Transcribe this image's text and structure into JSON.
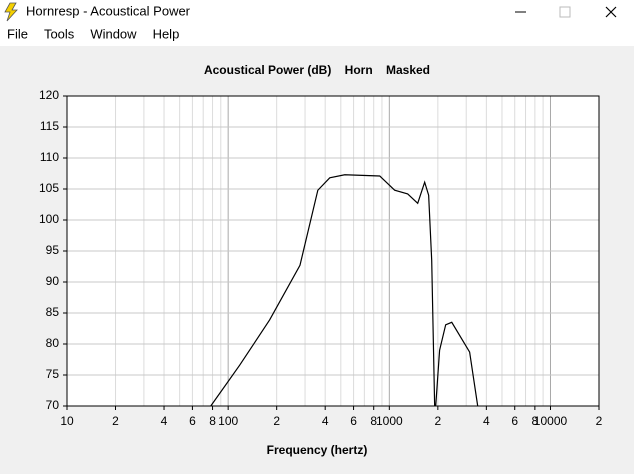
{
  "window": {
    "title": "Hornresp - Acoustical Power",
    "menu": [
      "File",
      "Tools",
      "Window",
      "Help"
    ]
  },
  "chart_data": {
    "type": "line",
    "title": "Acoustical Power (dB)    Horn    Masked",
    "x_label": "Frequency (hertz)",
    "log_x": true,
    "grid": true,
    "xlim": [
      10,
      20000
    ],
    "ylim": [
      70,
      120
    ],
    "xticks": [
      10,
      {
        "value": 20,
        "label": "2"
      },
      {
        "value": 40,
        "label": "4"
      },
      {
        "value": 60,
        "label": "6"
      },
      {
        "value": 80,
        "label": "8"
      },
      100,
      {
        "value": 200,
        "label": "2"
      },
      {
        "value": 400,
        "label": "4"
      },
      {
        "value": 600,
        "label": "6"
      },
      {
        "value": 800,
        "label": "8"
      },
      1000,
      {
        "value": 2000,
        "label": "2"
      },
      {
        "value": 4000,
        "label": "4"
      },
      {
        "value": 6000,
        "label": "6"
      },
      {
        "value": 8000,
        "label": "8"
      },
      10000,
      {
        "value": 20000,
        "label": "2"
      }
    ],
    "xminor": [
      30,
      50,
      70,
      90,
      300,
      500,
      700,
      900,
      3000,
      5000,
      7000,
      9000
    ],
    "yticks": [
      70,
      75,
      80,
      85,
      90,
      95,
      100,
      105,
      110,
      115,
      120
    ],
    "color": "#000000",
    "x": [
      78,
      118,
      181,
      279,
      360,
      427,
      529,
      872,
      1079,
      1300,
      1500,
      1657,
      1754,
      1832,
      1911,
      1940,
      2051,
      2237,
      2440,
      3150,
      3535
    ],
    "values": [
      70,
      76.6,
      83.9,
      92.7,
      104.8,
      106.8,
      107.3,
      107.1,
      104.8,
      104.2,
      102.7,
      106.1,
      104,
      93.5,
      70,
      70,
      79,
      83.1,
      83.5,
      78.7,
      70
    ]
  }
}
